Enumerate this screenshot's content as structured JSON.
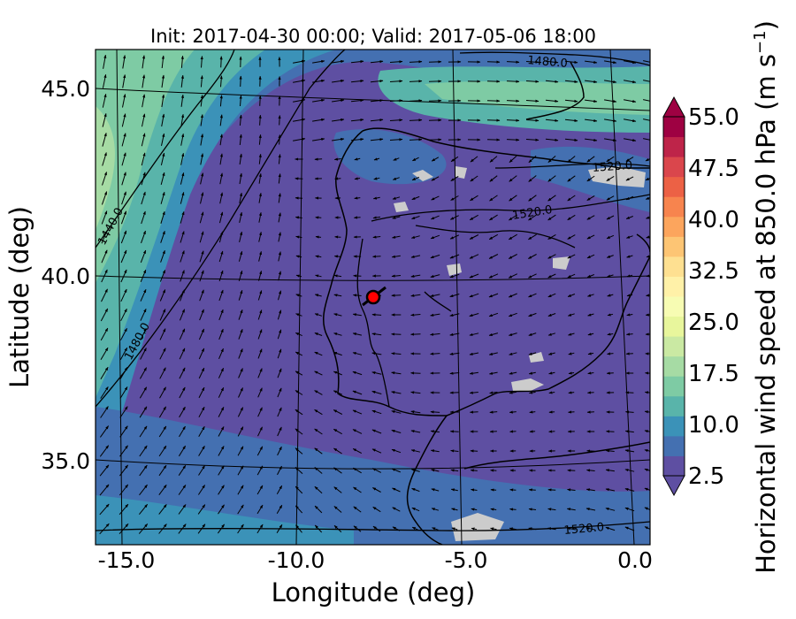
{
  "figure": {
    "title": "Init: 2017-04-30 00:00; Valid: 2017-05-06 18:00",
    "xlabel": "Longitude (deg)",
    "ylabel": "Latitude (deg)",
    "colorbar_label": "Horizontal wind speed at 850.0 hPa (m s",
    "colorbar_label_exponent": "−1",
    "colorbar_label_close": ")",
    "xticks": [
      "-15.0",
      "-10.0",
      "-5.0",
      "0.0"
    ],
    "yticks": [
      "45.0",
      "40.0",
      "35.0"
    ],
    "colorbar_ticks": [
      "55.0",
      "47.5",
      "40.0",
      "32.5",
      "25.0",
      "17.5",
      "10.0",
      "2.5"
    ],
    "contour_labels": [
      "1480.0",
      "1520.0",
      "1520.0",
      "1440.0",
      "1480.0",
      "1520.0"
    ]
  },
  "chart_data": {
    "type": "heatmap",
    "title": "Init: 2017-04-30 00:00; Valid: 2017-05-06 18:00",
    "xlabel": "Longitude (deg)",
    "ylabel": "Latitude (deg)",
    "xlim": [
      -16,
      0.3
    ],
    "ylim": [
      32.7,
      46.3
    ],
    "variable": "Horizontal wind speed at 850.0 hPa",
    "units": "m s-1",
    "colorbar_range": [
      2.5,
      55.0
    ],
    "colorbar_step": 2.5,
    "colormap": "Spectral_r",
    "colors": [
      "#5e4fa2",
      "#4470b1",
      "#3b92b8",
      "#59b4aa",
      "#7ecba4",
      "#a6dba4",
      "#cae9a3",
      "#e8f69c",
      "#f7fcb3",
      "#fff1a8",
      "#fee091",
      "#fdc574",
      "#fca55d",
      "#f7844e",
      "#ec6145",
      "#da464c",
      "#be2449",
      "#9e0142"
    ],
    "geopotential_contours_m": [
      1440.0,
      1480.0,
      1520.0
    ],
    "marker": {
      "lon": -7.6,
      "lat": 39.3,
      "color": "#ff0000"
    },
    "wind_vectors": true,
    "grid": true
  }
}
